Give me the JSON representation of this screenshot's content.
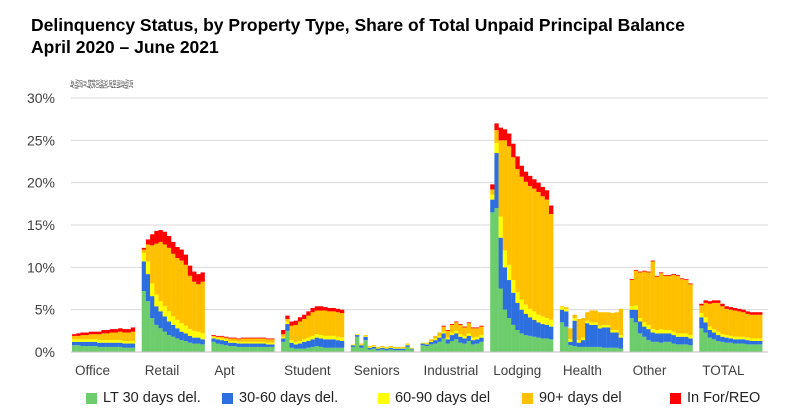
{
  "title_line1": "Delinquency Status, by Property Type, Share of Total Unpaid Principal Balance",
  "title_line2": "April 2020 – June 2021",
  "chart_data": {
    "type": "bar",
    "stacked": true,
    "title": "Delinquency Status, by Property Type, Share of Total Unpaid Principal Balance April 2020 – June 2021",
    "ylim": [
      0,
      30
    ],
    "yticks": [
      "0%",
      "5%",
      "10%",
      "15%",
      "20%",
      "25%",
      "30%"
    ],
    "ytick_values": [
      0,
      5,
      10,
      15,
      20,
      25,
      30
    ],
    "grid": true,
    "legend_position": "bottom",
    "month_labels": [
      "Apr",
      "May",
      "Jun",
      "Jul",
      "Aug",
      "Sep",
      "Oct",
      "Nov",
      "Dec",
      "Jan",
      "Feb",
      "Mar",
      "Apr",
      "May",
      "Jun"
    ],
    "series": [
      {
        "name": "LT 30 days del.",
        "color": "#6DCD6D"
      },
      {
        "name": "30-60 days del.",
        "color": "#2E6FE0"
      },
      {
        "name": "60-90 days del",
        "color": "#FFFF00"
      },
      {
        "name": "90+ days del",
        "color": "#FFC000"
      },
      {
        "name": "In For/REO",
        "color": "#FF0000"
      }
    ],
    "groups": [
      {
        "category": "Office",
        "data": [
          [
            0.8,
            0.4,
            0.3,
            0.4,
            0.2
          ],
          [
            0.8,
            0.4,
            0.3,
            0.4,
            0.3
          ],
          [
            0.7,
            0.5,
            0.3,
            0.5,
            0.3
          ],
          [
            0.7,
            0.5,
            0.3,
            0.5,
            0.3
          ],
          [
            0.7,
            0.5,
            0.3,
            0.6,
            0.3
          ],
          [
            0.7,
            0.5,
            0.3,
            0.6,
            0.3
          ],
          [
            0.6,
            0.5,
            0.3,
            0.7,
            0.3
          ],
          [
            0.6,
            0.5,
            0.3,
            0.8,
            0.4
          ],
          [
            0.6,
            0.5,
            0.3,
            0.8,
            0.4
          ],
          [
            0.6,
            0.5,
            0.3,
            0.9,
            0.4
          ],
          [
            0.6,
            0.5,
            0.3,
            0.9,
            0.4
          ],
          [
            0.6,
            0.5,
            0.3,
            1.0,
            0.4
          ],
          [
            0.5,
            0.5,
            0.3,
            1.0,
            0.4
          ],
          [
            0.5,
            0.5,
            0.3,
            1.0,
            0.4
          ],
          [
            0.5,
            0.5,
            0.3,
            1.1,
            0.5
          ]
        ]
      },
      {
        "category": "Retail",
        "data": [
          [
            7.2,
            3.5,
            1.0,
            0.4,
            0.2
          ],
          [
            6.0,
            3.2,
            1.5,
            2.0,
            0.6
          ],
          [
            4.0,
            2.6,
            1.5,
            4.5,
            1.3
          ],
          [
            3.2,
            2.2,
            1.4,
            6.0,
            1.5
          ],
          [
            2.8,
            2.0,
            1.2,
            7.0,
            1.4
          ],
          [
            2.4,
            1.8,
            1.2,
            7.3,
            1.5
          ],
          [
            2.0,
            1.6,
            1.2,
            7.5,
            1.4
          ],
          [
            1.8,
            1.4,
            1.0,
            7.4,
            1.4
          ],
          [
            1.6,
            1.2,
            1.0,
            7.3,
            1.3
          ],
          [
            1.4,
            1.0,
            1.0,
            7.4,
            1.3
          ],
          [
            1.3,
            0.9,
            0.9,
            7.2,
            1.2
          ],
          [
            1.1,
            0.8,
            0.8,
            6.3,
            1.2
          ],
          [
            1.0,
            0.7,
            0.8,
            5.8,
            1.2
          ],
          [
            1.0,
            0.7,
            0.7,
            5.6,
            1.2
          ],
          [
            0.9,
            0.6,
            0.7,
            6.1,
            1.1
          ]
        ]
      },
      {
        "category": "Apt",
        "data": [
          [
            1.2,
            0.4,
            0.2,
            0.1,
            0.1
          ],
          [
            1.0,
            0.5,
            0.2,
            0.1,
            0.1
          ],
          [
            0.9,
            0.5,
            0.2,
            0.2,
            0.1
          ],
          [
            0.8,
            0.5,
            0.2,
            0.2,
            0.1
          ],
          [
            0.7,
            0.4,
            0.2,
            0.3,
            0.1
          ],
          [
            0.7,
            0.4,
            0.2,
            0.3,
            0.1
          ],
          [
            0.6,
            0.4,
            0.2,
            0.3,
            0.1
          ],
          [
            0.6,
            0.4,
            0.2,
            0.4,
            0.1
          ],
          [
            0.6,
            0.4,
            0.2,
            0.4,
            0.1
          ],
          [
            0.6,
            0.4,
            0.2,
            0.4,
            0.1
          ],
          [
            0.6,
            0.4,
            0.2,
            0.4,
            0.1
          ],
          [
            0.6,
            0.4,
            0.2,
            0.4,
            0.1
          ],
          [
            0.6,
            0.4,
            0.2,
            0.4,
            0.1
          ],
          [
            0.6,
            0.3,
            0.2,
            0.4,
            0.1
          ],
          [
            0.6,
            0.3,
            0.2,
            0.4,
            0.1
          ]
        ]
      },
      {
        "category": "Student",
        "data": [
          [
            1.2,
            0.4,
            0.2,
            0.3,
            0.5
          ],
          [
            2.5,
            0.8,
            0.3,
            0.3,
            0.4
          ],
          [
            0.5,
            0.6,
            0.3,
            1.7,
            0.5
          ],
          [
            0.4,
            0.5,
            0.3,
            2.0,
            0.5
          ],
          [
            0.4,
            0.6,
            0.3,
            2.3,
            0.5
          ],
          [
            0.4,
            0.8,
            0.3,
            2.4,
            0.5
          ],
          [
            0.5,
            0.8,
            0.4,
            2.6,
            0.5
          ],
          [
            0.6,
            0.9,
            0.4,
            2.8,
            0.5
          ],
          [
            0.7,
            1.0,
            0.4,
            2.8,
            0.5
          ],
          [
            0.6,
            1.0,
            0.4,
            2.9,
            0.5
          ],
          [
            0.5,
            1.0,
            0.4,
            3.0,
            0.4
          ],
          [
            0.5,
            1.0,
            0.4,
            2.9,
            0.4
          ],
          [
            0.5,
            1.0,
            0.4,
            2.9,
            0.4
          ],
          [
            0.5,
            0.9,
            0.4,
            2.9,
            0.4
          ],
          [
            0.5,
            0.8,
            0.4,
            2.9,
            0.4
          ]
        ]
      },
      {
        "category": "Seniors",
        "data": [
          [
            0.6,
            0.2,
            0.1,
            0.0,
            0.0
          ],
          [
            1.8,
            0.2,
            0.1,
            0.0,
            0.0
          ],
          [
            0.5,
            0.3,
            0.1,
            0.1,
            0.0
          ],
          [
            1.4,
            0.4,
            0.1,
            0.1,
            0.0
          ],
          [
            0.3,
            0.2,
            0.1,
            0.1,
            0.0
          ],
          [
            0.4,
            0.2,
            0.1,
            0.1,
            0.0
          ],
          [
            0.2,
            0.2,
            0.1,
            0.1,
            0.0
          ],
          [
            0.3,
            0.2,
            0.1,
            0.1,
            0.0
          ],
          [
            0.2,
            0.2,
            0.1,
            0.1,
            0.0
          ],
          [
            0.3,
            0.2,
            0.1,
            0.1,
            0.0
          ],
          [
            0.2,
            0.2,
            0.1,
            0.1,
            0.0
          ],
          [
            0.2,
            0.2,
            0.1,
            0.1,
            0.0
          ],
          [
            0.2,
            0.2,
            0.1,
            0.1,
            0.0
          ],
          [
            0.6,
            0.2,
            0.1,
            0.1,
            0.0
          ],
          [
            0.3,
            0.1,
            0.1,
            0.0,
            0.0
          ]
        ]
      },
      {
        "category": "Industrial",
        "data": [
          [
            0.8,
            0.2,
            0.1,
            0.0,
            0.0
          ],
          [
            0.7,
            0.2,
            0.1,
            0.1,
            0.0
          ],
          [
            0.9,
            0.3,
            0.1,
            0.2,
            0.0
          ],
          [
            1.0,
            0.4,
            0.2,
            0.3,
            0.0
          ],
          [
            1.2,
            0.5,
            0.2,
            0.4,
            0.0
          ],
          [
            1.6,
            0.6,
            0.2,
            0.6,
            0.1
          ],
          [
            1.0,
            0.5,
            0.2,
            0.8,
            0.1
          ],
          [
            1.3,
            0.7,
            0.3,
            0.9,
            0.1
          ],
          [
            1.5,
            0.7,
            0.3,
            1.0,
            0.1
          ],
          [
            1.1,
            0.7,
            0.3,
            1.1,
            0.1
          ],
          [
            1.0,
            0.6,
            0.3,
            1.0,
            0.1
          ],
          [
            1.3,
            0.6,
            0.3,
            1.2,
            0.1
          ],
          [
            0.9,
            0.5,
            0.3,
            1.1,
            0.1
          ],
          [
            1.0,
            0.5,
            0.3,
            1.0,
            0.1
          ],
          [
            1.2,
            0.5,
            0.3,
            1.0,
            0.1
          ]
        ]
      },
      {
        "category": "Lodging",
        "data": [
          [
            16.5,
            1.5,
            0.6,
            0.6,
            0.6
          ],
          [
            17.0,
            6.5,
            1.2,
            1.5,
            0.8
          ],
          [
            7.5,
            6.0,
            2.5,
            9.0,
            1.5
          ],
          [
            5.0,
            5.0,
            2.0,
            13.0,
            1.3
          ],
          [
            4.0,
            4.5,
            1.8,
            14.0,
            1.5
          ],
          [
            3.2,
            3.8,
            1.5,
            14.5,
            1.6
          ],
          [
            2.6,
            3.2,
            1.3,
            14.5,
            1.5
          ],
          [
            2.2,
            2.8,
            1.2,
            14.5,
            1.3
          ],
          [
            2.0,
            2.5,
            1.1,
            14.5,
            1.2
          ],
          [
            1.9,
            2.2,
            1.0,
            14.5,
            1.2
          ],
          [
            1.8,
            2.0,
            1.0,
            14.5,
            1.1
          ],
          [
            1.7,
            1.8,
            0.9,
            14.5,
            1.1
          ],
          [
            1.6,
            1.7,
            0.9,
            14.2,
            1.1
          ],
          [
            1.6,
            1.6,
            0.8,
            14.0,
            1.1
          ],
          [
            1.5,
            1.5,
            0.8,
            12.5,
            1.0
          ]
        ]
      },
      {
        "category": "Health",
        "data": [
          [
            3.5,
            1.5,
            0.3,
            0.1,
            0.0
          ],
          [
            3.0,
            1.8,
            0.3,
            0.2,
            0.0
          ],
          [
            0.8,
            0.4,
            0.3,
            1.3,
            0.0
          ],
          [
            0.7,
            3.0,
            0.3,
            0.4,
            0.0
          ],
          [
            0.6,
            0.5,
            0.3,
            2.5,
            0.0
          ],
          [
            0.6,
            0.8,
            0.3,
            2.3,
            0.0
          ],
          [
            0.6,
            2.8,
            0.3,
            1.0,
            0.0
          ],
          [
            0.6,
            2.6,
            0.3,
            1.4,
            0.0
          ],
          [
            0.6,
            2.6,
            0.3,
            1.4,
            0.0
          ],
          [
            0.6,
            2.2,
            0.3,
            1.6,
            0.0
          ],
          [
            0.5,
            2.4,
            0.3,
            1.5,
            0.0
          ],
          [
            0.5,
            2.4,
            0.3,
            1.5,
            0.0
          ],
          [
            0.5,
            1.8,
            0.3,
            2.0,
            0.0
          ],
          [
            0.5,
            1.8,
            0.3,
            2.1,
            0.0
          ],
          [
            0.4,
            1.3,
            0.3,
            3.1,
            0.0
          ]
        ]
      },
      {
        "category": "Other",
        "data": [
          [
            4.0,
            1.0,
            0.4,
            3.1,
            0.1
          ],
          [
            3.5,
            1.5,
            0.5,
            4.1,
            0.1
          ],
          [
            2.2,
            1.4,
            0.4,
            5.4,
            0.1
          ],
          [
            1.8,
            1.2,
            0.5,
            6.0,
            0.1
          ],
          [
            1.4,
            1.3,
            0.5,
            6.2,
            0.1
          ],
          [
            1.2,
            1.1,
            0.4,
            8.0,
            0.1
          ],
          [
            1.2,
            1.0,
            0.4,
            6.3,
            0.1
          ],
          [
            1.1,
            1.1,
            0.5,
            6.6,
            0.1
          ],
          [
            1.2,
            1.0,
            0.4,
            6.4,
            0.1
          ],
          [
            1.2,
            1.0,
            0.4,
            6.4,
            0.1
          ],
          [
            1.0,
            1.0,
            0.4,
            6.7,
            0.1
          ],
          [
            0.9,
            0.9,
            0.4,
            6.8,
            0.1
          ],
          [
            0.9,
            0.9,
            0.4,
            6.4,
            0.1
          ],
          [
            0.9,
            0.9,
            0.4,
            6.3,
            0.1
          ],
          [
            0.8,
            0.8,
            0.4,
            6.0,
            0.1
          ]
        ]
      },
      {
        "category": "TOTAL",
        "data": [
          [
            2.8,
            1.3,
            0.5,
            0.9,
            0.2
          ],
          [
            2.3,
            1.2,
            0.6,
            1.7,
            0.3
          ],
          [
            1.7,
            0.9,
            0.4,
            2.7,
            0.3
          ],
          [
            1.5,
            0.8,
            0.4,
            3.1,
            0.3
          ],
          [
            1.3,
            0.7,
            0.4,
            3.4,
            0.3
          ],
          [
            1.2,
            0.6,
            0.3,
            3.3,
            0.3
          ],
          [
            1.1,
            0.6,
            0.3,
            3.1,
            0.3
          ],
          [
            1.1,
            0.5,
            0.3,
            3.1,
            0.3
          ],
          [
            1.0,
            0.5,
            0.3,
            3.1,
            0.3
          ],
          [
            1.0,
            0.5,
            0.3,
            3.0,
            0.3
          ],
          [
            1.0,
            0.5,
            0.3,
            2.9,
            0.3
          ],
          [
            0.9,
            0.5,
            0.3,
            2.8,
            0.3
          ],
          [
            0.9,
            0.4,
            0.3,
            2.8,
            0.3
          ],
          [
            0.9,
            0.4,
            0.3,
            2.8,
            0.3
          ],
          [
            0.9,
            0.4,
            0.3,
            2.8,
            0.3
          ]
        ]
      }
    ]
  }
}
